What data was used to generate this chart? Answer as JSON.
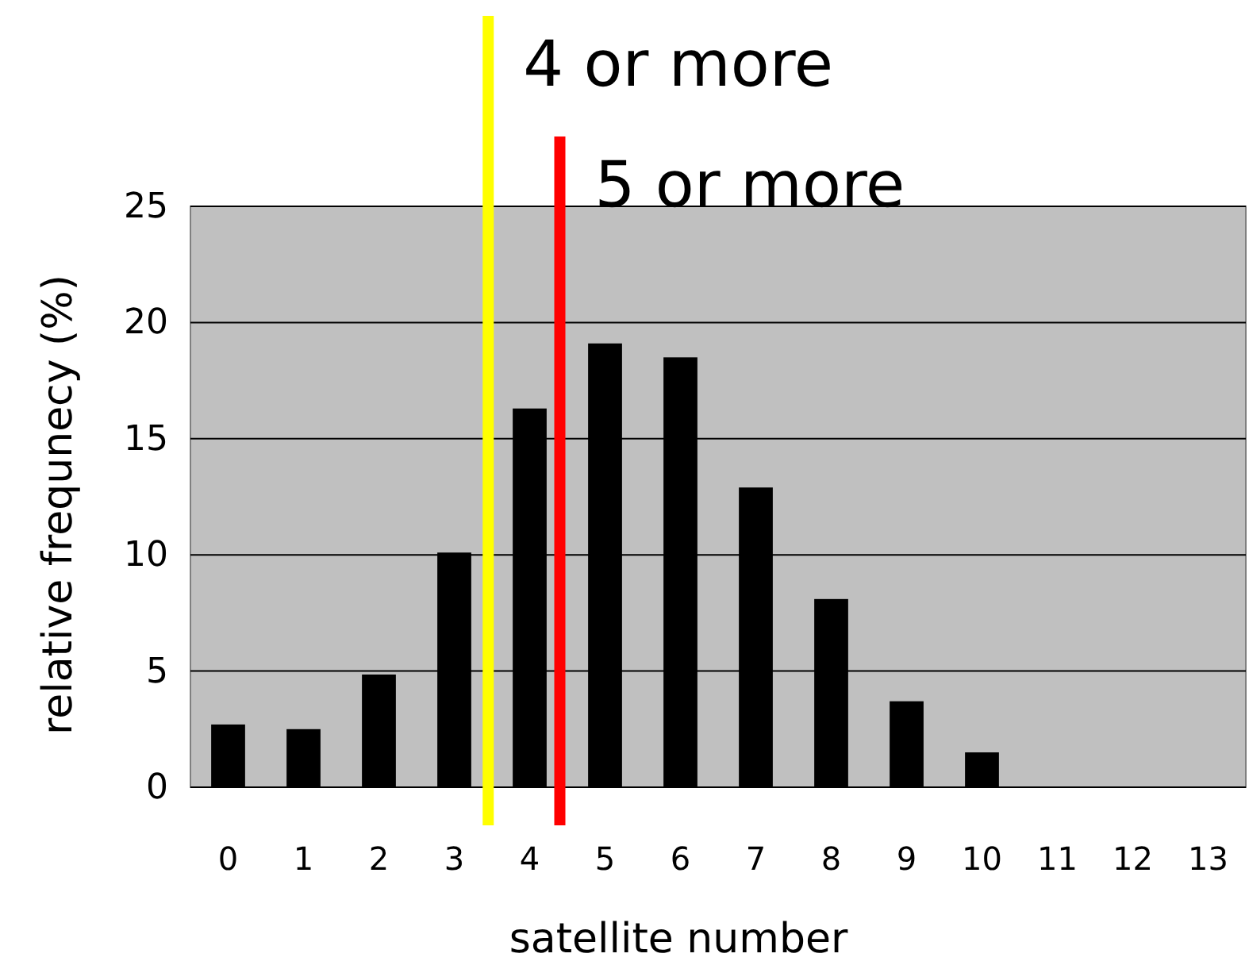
{
  "chart_data": {
    "type": "bar",
    "xlabel": "satellite number",
    "ylabel": "relative frequnecy (%)",
    "x": [
      0,
      1,
      2,
      3,
      4,
      5,
      6,
      7,
      8,
      9,
      10,
      11,
      12,
      13
    ],
    "values": [
      2.7,
      2.5,
      4.85,
      10.1,
      16.3,
      19.1,
      18.5,
      12.9,
      8.1,
      3.7,
      1.5,
      0,
      0,
      0
    ],
    "color": "#000000",
    "xlim": [
      -0.5,
      13.5
    ],
    "xticks": [
      0,
      1,
      2,
      3,
      4,
      5,
      6,
      7,
      8,
      9,
      10,
      11,
      12,
      13
    ],
    "ylim": [
      0,
      25
    ],
    "yticks": [
      0,
      5,
      10,
      15,
      20,
      25
    ],
    "grid": "y",
    "ref_lines": [
      {
        "axis": "x",
        "value": 3.45,
        "label": "4 or more",
        "color": "#ffff00"
      },
      {
        "axis": "x",
        "value": 4.4,
        "label": "5 or more",
        "color": "#ff0000"
      }
    ]
  }
}
